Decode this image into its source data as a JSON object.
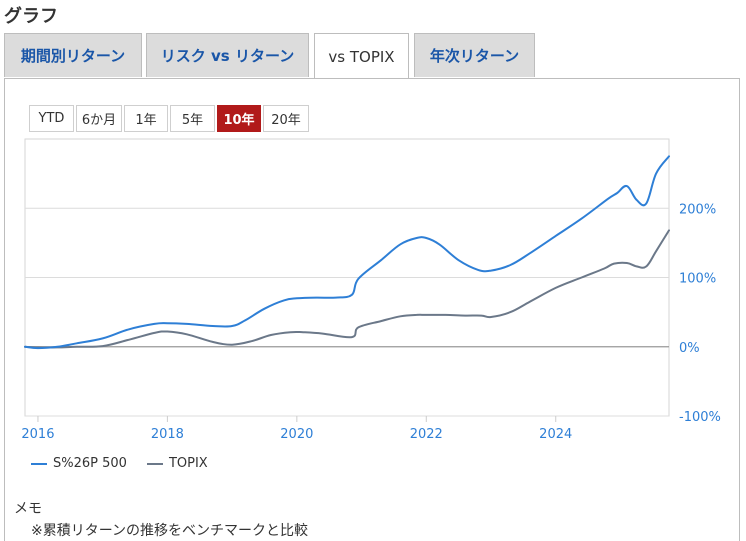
{
  "section_title": "グラフ",
  "tabs": [
    {
      "label": "期間別リターン",
      "active": false
    },
    {
      "label": "リスク vs リターン",
      "active": false
    },
    {
      "label": "vs TOPIX",
      "active": true
    },
    {
      "label": "年次リターン",
      "active": false
    }
  ],
  "range_buttons": [
    {
      "label": "YTD",
      "active": false
    },
    {
      "label": "6か月",
      "active": false
    },
    {
      "label": "1年",
      "active": false
    },
    {
      "label": "5年",
      "active": false
    },
    {
      "label": "10年",
      "active": true
    },
    {
      "label": "20年",
      "active": false
    }
  ],
  "chart_data": {
    "type": "line",
    "x_ticks": [
      2016,
      2018,
      2020,
      2022,
      2024
    ],
    "x_range": [
      2015.8,
      2025.75
    ],
    "y_ticks": [
      "-100%",
      "0%",
      "100%",
      "200%"
    ],
    "ylim": [
      -100,
      300
    ],
    "grid": true,
    "legend_position": "bottom-left",
    "series": [
      {
        "name": "S%26P 500",
        "color": "#2e7fd6",
        "x": [
          2015.8,
          2016.0,
          2016.3,
          2016.6,
          2017.0,
          2017.4,
          2017.8,
          2018.0,
          2018.3,
          2018.7,
          2019.0,
          2019.2,
          2019.5,
          2019.8,
          2020.0,
          2020.3,
          2020.6,
          2020.85,
          2020.95,
          2021.3,
          2021.6,
          2021.85,
          2022.0,
          2022.2,
          2022.5,
          2022.8,
          2023.0,
          2023.3,
          2023.6,
          2024.0,
          2024.4,
          2024.8,
          2024.95,
          2025.1,
          2025.25,
          2025.4,
          2025.55,
          2025.75
        ],
        "values": [
          0,
          -2,
          0,
          5,
          12,
          25,
          33,
          34,
          33,
          30,
          30,
          38,
          55,
          67,
          70,
          71,
          71,
          75,
          98,
          125,
          148,
          157,
          157,
          148,
          125,
          111,
          110,
          118,
          135,
          160,
          185,
          213,
          222,
          232,
          212,
          207,
          250,
          275
        ]
      },
      {
        "name": "TOPIX",
        "color": "#6b7889",
        "x": [
          2015.8,
          2016.0,
          2016.3,
          2016.6,
          2017.0,
          2017.4,
          2017.8,
          2018.0,
          2018.3,
          2018.7,
          2019.0,
          2019.3,
          2019.6,
          2019.9,
          2020.1,
          2020.4,
          2020.85,
          2020.95,
          2021.3,
          2021.6,
          2021.85,
          2022.0,
          2022.3,
          2022.6,
          2022.85,
          2023.0,
          2023.3,
          2023.6,
          2024.0,
          2024.4,
          2024.75,
          2024.9,
          2025.1,
          2025.25,
          2025.4,
          2025.55,
          2025.75
        ],
        "values": [
          0,
          -1,
          -1,
          0,
          1,
          10,
          20,
          22,
          18,
          7,
          3,
          8,
          17,
          21,
          21,
          19,
          14,
          28,
          37,
          44,
          46,
          46,
          46,
          45,
          45,
          43,
          50,
          65,
          85,
          100,
          113,
          120,
          121,
          116,
          116,
          138,
          168
        ]
      }
    ]
  },
  "memo": {
    "title": "メモ",
    "text": "※累積リターンの推移をベンチマークと比較"
  }
}
